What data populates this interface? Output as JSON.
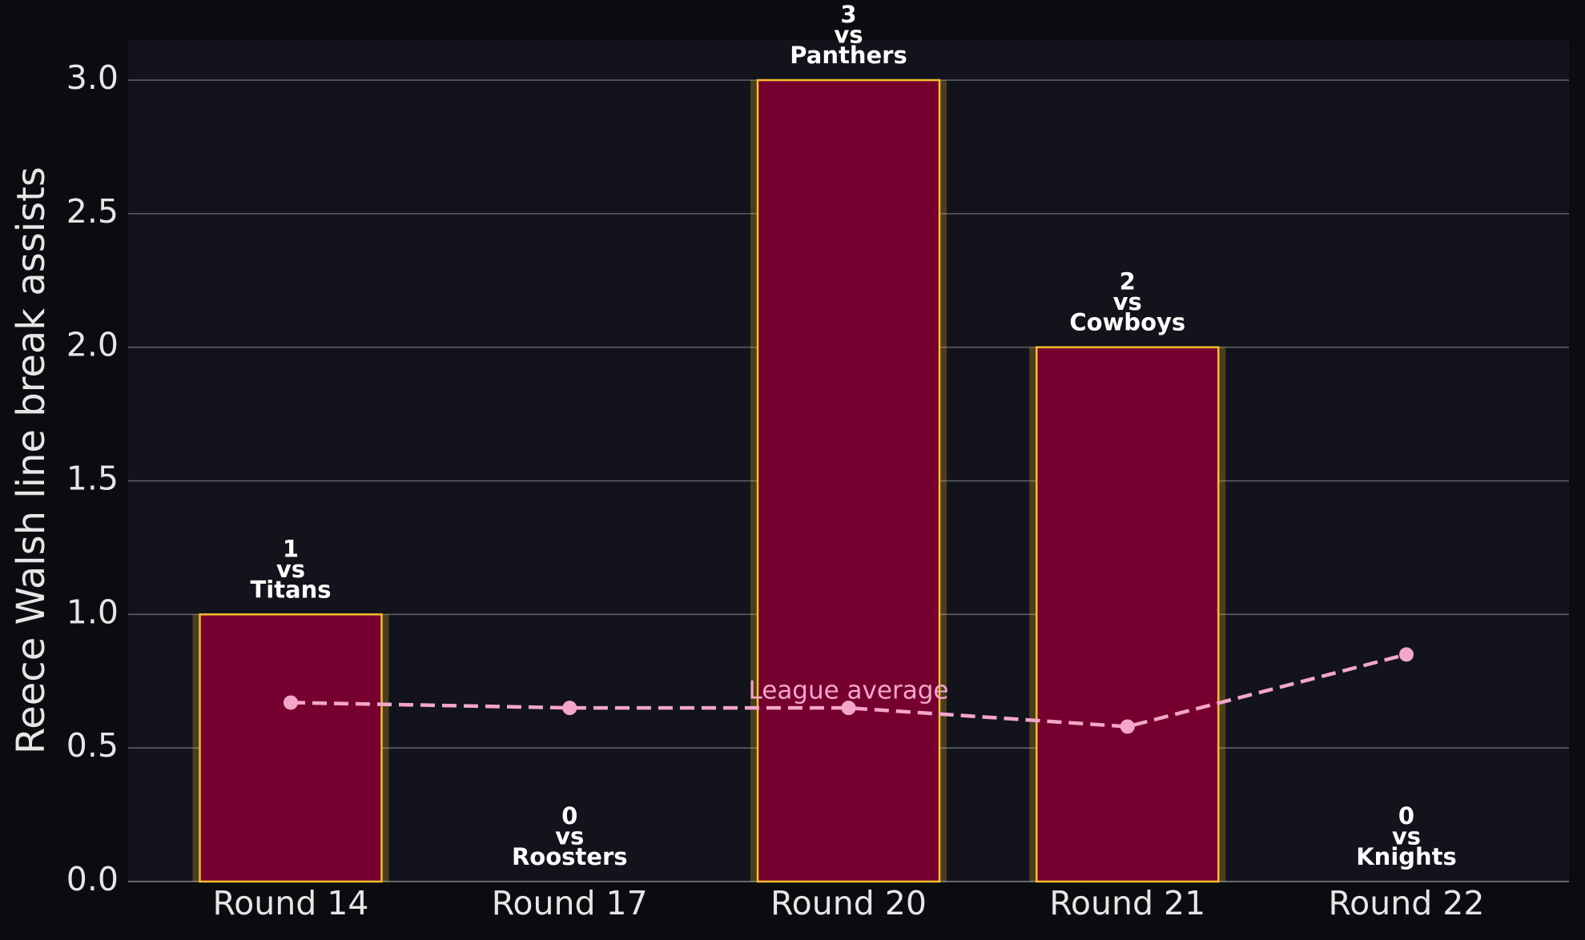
{
  "chart_data": {
    "type": "bar",
    "ylabel": "Reece Walsh line break assists",
    "categories": [
      "Round 14",
      "Round 17",
      "Round 20",
      "Round 21",
      "Round 22"
    ],
    "values": [
      1,
      0,
      3,
      2,
      0
    ],
    "value_labels": [
      "1\nvs\nTitans",
      "0\nvs\nRoosters",
      "3\nvs\nPanthers",
      "2\nvs\nCowboys",
      "0\nvs\nKnights"
    ],
    "color": "#75002f",
    "edge_color": "#f2c02a",
    "line_series": {
      "name": "League average",
      "color": "#f4a6c8",
      "values": [
        0.67,
        0.65,
        0.65,
        0.58,
        0.85
      ]
    },
    "annotation": "League average",
    "ylim": [
      0,
      3.15
    ],
    "yticks": [
      {
        "value": 0,
        "label": "0.0"
      },
      {
        "value": 0.5,
        "label": "0.5"
      },
      {
        "value": 1,
        "label": "1.0"
      },
      {
        "value": 1.5,
        "label": "1.5"
      },
      {
        "value": 2,
        "label": "2.0"
      },
      {
        "value": 2.5,
        "label": "2.5"
      },
      {
        "value": 3,
        "label": "3.0"
      }
    ],
    "grid": true
  }
}
